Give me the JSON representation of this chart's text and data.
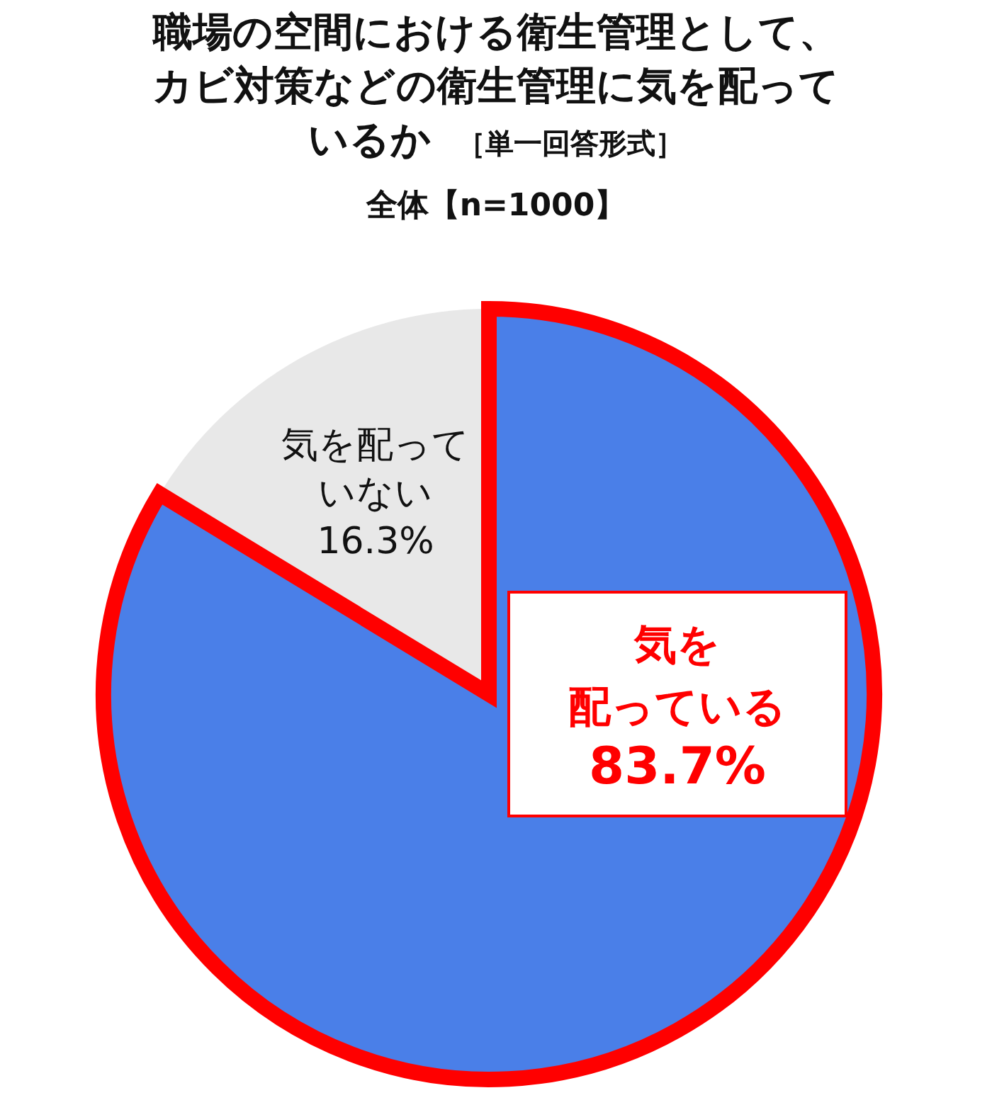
{
  "chart_data": {
    "type": "pie",
    "title": "職場の空間における衛生管理として、カビ対策などの衛生管理に気を配っているか",
    "annotations": [
      "［単一回答形式］"
    ],
    "subtitle": "全体【n=1000】",
    "categories": [
      "気を配っている",
      "気を配っていない"
    ],
    "values": [
      83.7,
      16.3
    ],
    "colors": [
      "#4a7fe8",
      "#e8e8e8"
    ],
    "value_labels": [
      "83.7%",
      "16.3%"
    ]
  }
}
